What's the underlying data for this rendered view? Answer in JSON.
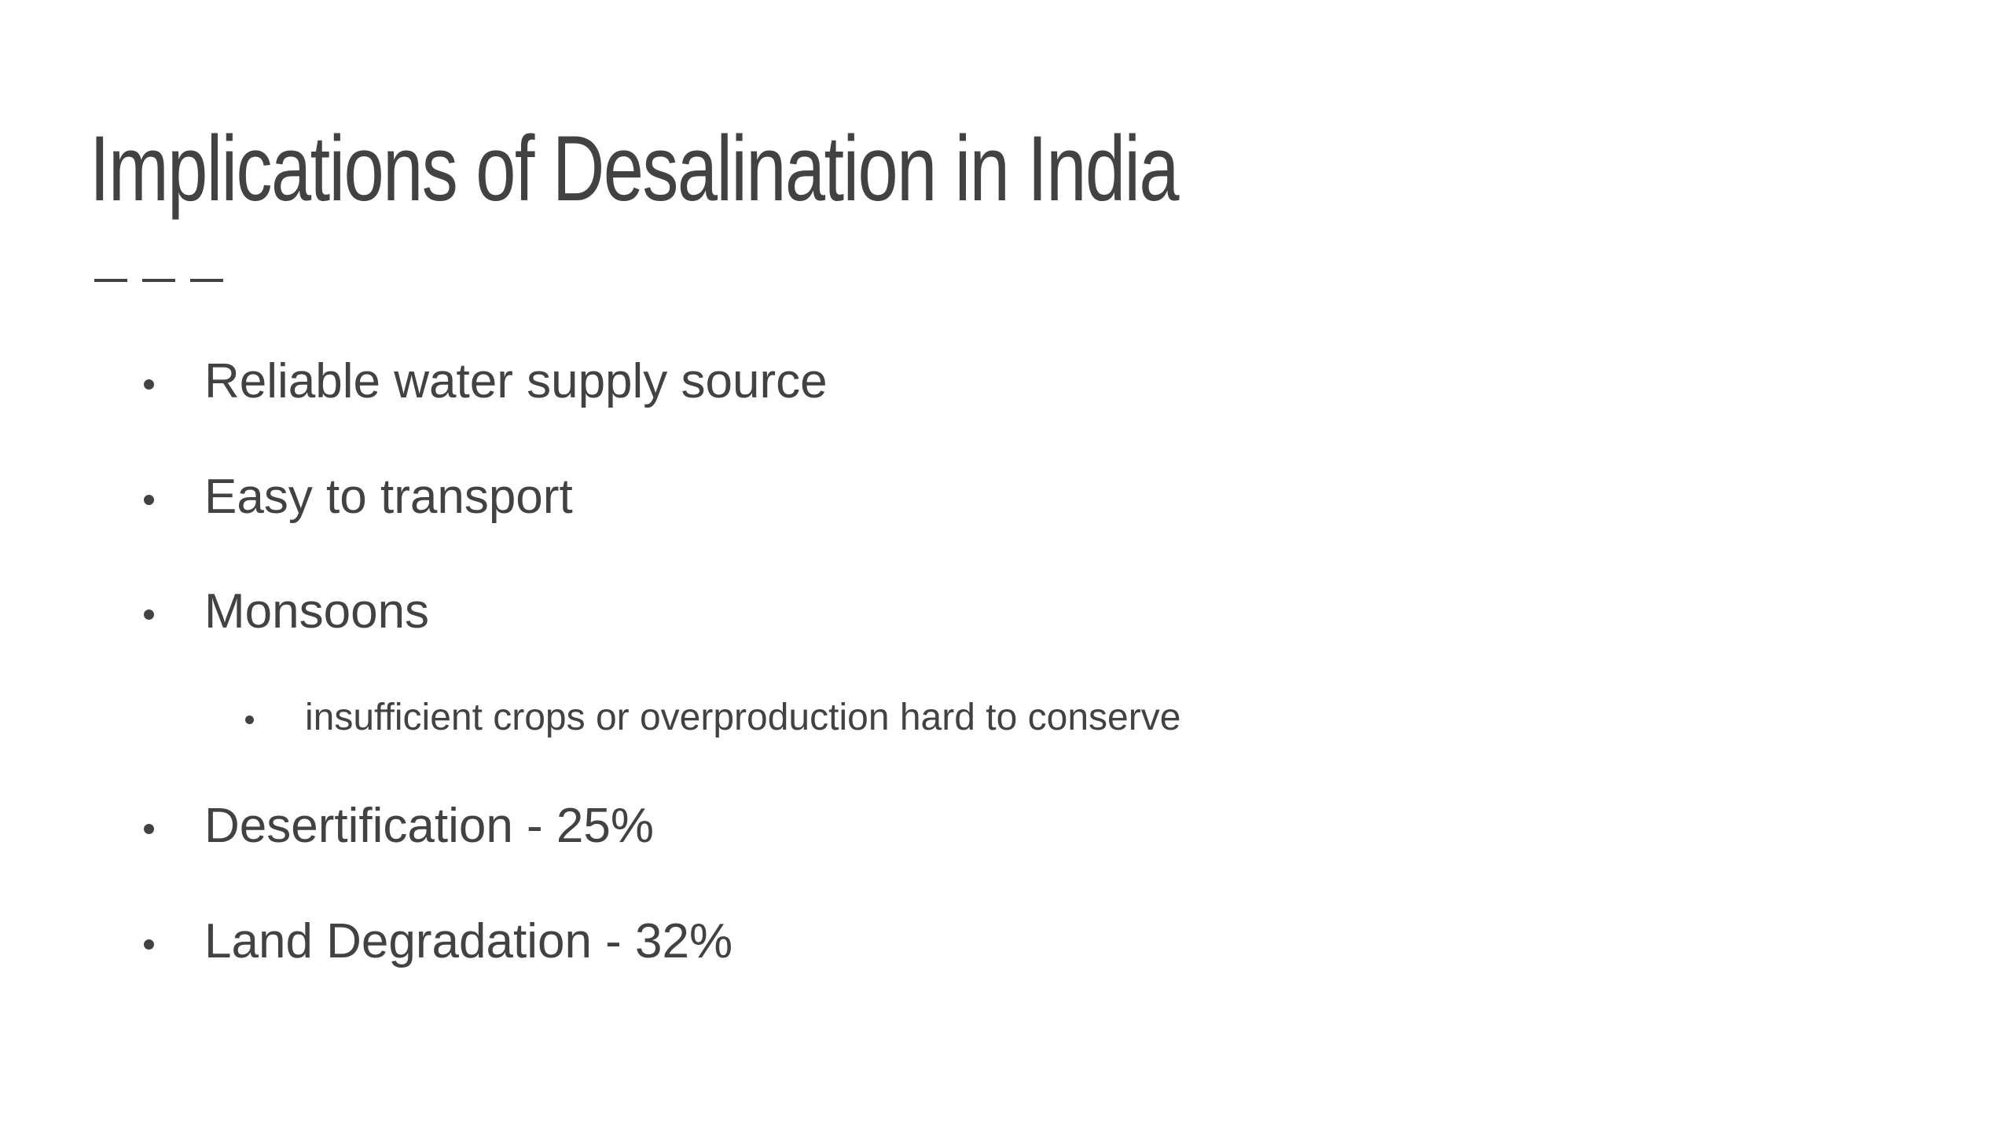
{
  "slide": {
    "title": "Implications of Desalination in India",
    "bullets": [
      {
        "text": "Reliable water supply source",
        "level": 1
      },
      {
        "text": "Easy to transport",
        "level": 1
      },
      {
        "text": "Monsoons",
        "level": 1
      },
      {
        "text": "insufficient crops or overproduction hard to conserve",
        "level": 2
      },
      {
        "text": "Desertification - 25%",
        "level": 1
      },
      {
        "text": "Land Degradation - 32%",
        "level": 1
      }
    ]
  },
  "colors": {
    "text": "#424242",
    "background": "#ffffff"
  }
}
